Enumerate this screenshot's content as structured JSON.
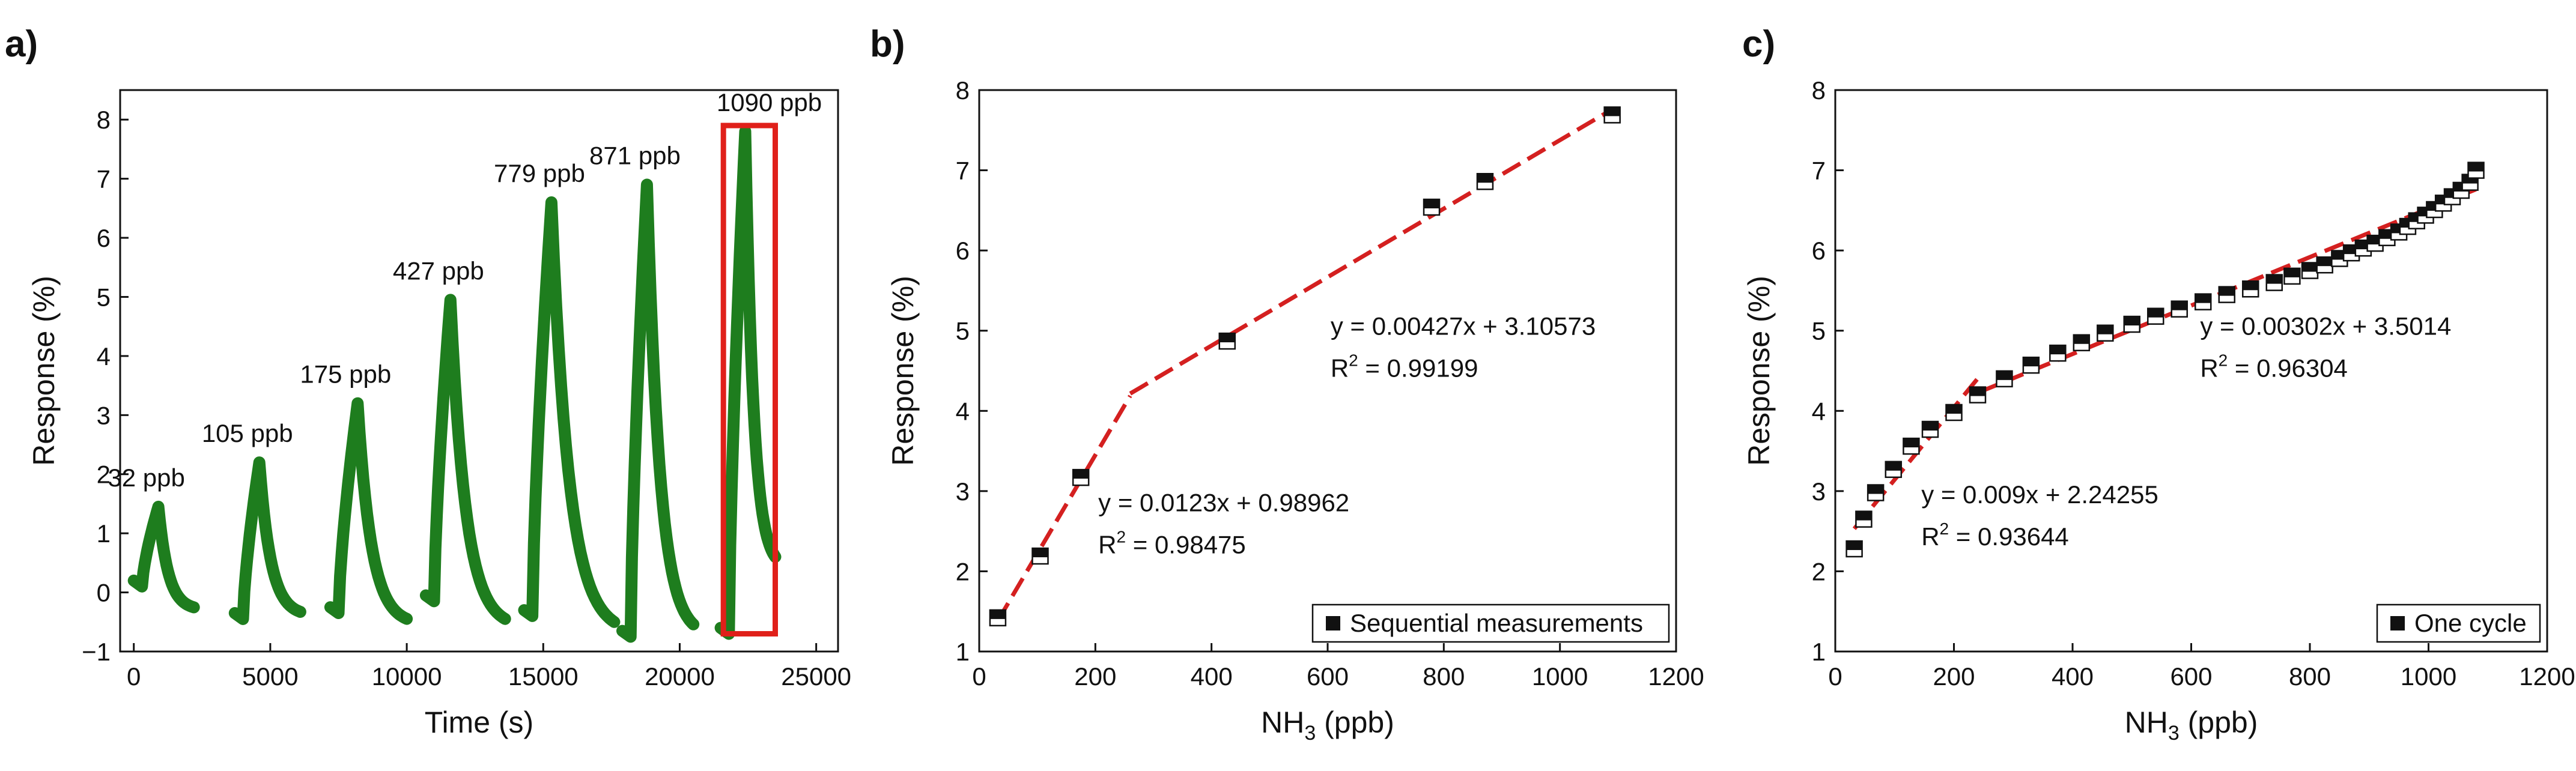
{
  "panels": [
    {
      "label": "a)"
    },
    {
      "label": "b)"
    },
    {
      "label": "c)"
    }
  ],
  "chart_data": [
    {
      "panel": "a)",
      "type": "line",
      "xlabel": "Time (s)",
      "ylabel": "Response (%)",
      "xlim": [
        -500,
        25800
      ],
      "ylim": [
        -1,
        8.5
      ],
      "xticks": [
        0,
        5000,
        10000,
        15000,
        20000,
        25000
      ],
      "yticks": [
        -1,
        0,
        1,
        2,
        3,
        4,
        5,
        6,
        7,
        8
      ],
      "color": "#1e7d1e",
      "highlight_color": "#e0201a",
      "highlight_box": {
        "x_range": [
          21600,
          23500
        ],
        "y_range": [
          -0.7,
          7.9
        ]
      },
      "pulses": [
        {
          "label": "32 ppb",
          "t_start": 300,
          "t_peak": 900,
          "t_end": 2200,
          "peak": 1.45,
          "base": 0.1,
          "tail": -0.3
        },
        {
          "label": "105 ppb",
          "t_start": 4000,
          "t_peak": 4600,
          "t_end": 6100,
          "peak": 2.2,
          "base": -0.45,
          "tail": -0.4
        },
        {
          "label": "175 ppb",
          "t_start": 7500,
          "t_peak": 8200,
          "t_end": 10000,
          "peak": 3.2,
          "base": -0.35,
          "tail": -0.55
        },
        {
          "label": "427 ppb",
          "t_start": 11000,
          "t_peak": 11600,
          "t_end": 13600,
          "peak": 4.95,
          "base": -0.15,
          "tail": -0.6
        },
        {
          "label": "779 ppb",
          "t_start": 14600,
          "t_peak": 15300,
          "t_end": 17600,
          "peak": 6.6,
          "base": -0.4,
          "tail": -0.7
        },
        {
          "label": "871 ppb",
          "t_start": 18200,
          "t_peak": 18800,
          "t_end": 20500,
          "peak": 6.9,
          "base": -0.75,
          "tail": -0.75
        },
        {
          "label": "1090 ppb",
          "t_start": 21800,
          "t_peak": 22400,
          "t_end": 23500,
          "peak": 7.8,
          "base": -0.7,
          "tail": 0.4
        }
      ]
    },
    {
      "panel": "b)",
      "type": "scatter",
      "xlabel": "NH3 (ppb)",
      "ylabel": "Response (%)",
      "xlim": [
        0,
        1200
      ],
      "ylim": [
        1,
        8
      ],
      "xticks": [
        0,
        200,
        400,
        600,
        800,
        1000,
        1200
      ],
      "yticks": [
        1,
        2,
        3,
        4,
        5,
        6,
        7,
        8
      ],
      "series": [
        {
          "name": "Sequential measurements",
          "x": [
            32,
            105,
            175,
            427,
            779,
            871,
            1090
          ],
          "y": [
            1.42,
            2.19,
            3.17,
            4.87,
            6.54,
            6.86,
            7.69
          ]
        }
      ],
      "fits": [
        {
          "eq": "y = 0.0123x + 0.98962",
          "r2_prefix": "R",
          "r2_sup": "2",
          "r2_value": " = 0.98475",
          "slope": 0.0123,
          "intercept": 0.98962,
          "x_range": [
            32,
            260
          ]
        },
        {
          "eq": "y = 0.00427x + 3.10573",
          "r2_prefix": "R",
          "r2_sup": "2",
          "r2_value": " = 0.99199",
          "slope": 0.00427,
          "intercept": 3.10573,
          "x_range": [
            260,
            1090
          ]
        }
      ],
      "fit_color": "#d42020",
      "legend_position": "bottom-right"
    },
    {
      "panel": "c)",
      "type": "scatter",
      "xlabel": "NH3 (ppb)",
      "ylabel": "Response (%)",
      "xlim": [
        0,
        1200
      ],
      "ylim": [
        1,
        8
      ],
      "xticks": [
        0,
        200,
        400,
        600,
        800,
        1000,
        1200
      ],
      "yticks": [
        1,
        2,
        3,
        4,
        5,
        6,
        7,
        8
      ],
      "series": [
        {
          "name": "One cycle",
          "x": [
            32,
            48,
            68,
            98,
            128,
            160,
            200,
            240,
            285,
            330,
            375,
            415,
            455,
            500,
            540,
            580,
            620,
            660,
            700,
            740,
            770,
            800,
            825,
            850,
            870,
            890,
            910,
            930,
            950,
            965,
            980,
            995,
            1010,
            1025,
            1040,
            1055,
            1070,
            1080
          ],
          "y": [
            2.28,
            2.65,
            2.98,
            3.27,
            3.56,
            3.77,
            3.98,
            4.2,
            4.4,
            4.57,
            4.72,
            4.85,
            4.97,
            5.08,
            5.18,
            5.27,
            5.36,
            5.45,
            5.52,
            5.6,
            5.68,
            5.75,
            5.82,
            5.9,
            5.97,
            6.03,
            6.09,
            6.16,
            6.23,
            6.3,
            6.37,
            6.44,
            6.51,
            6.59,
            6.67,
            6.75,
            6.85,
            7.0
          ]
        }
      ],
      "fits": [
        {
          "eq": "y = 0.009x + 2.24255",
          "r2_prefix": "R",
          "r2_sup": "2",
          "r2_value": " = 0.93644",
          "slope": 0.009,
          "intercept": 2.24255,
          "x_range": [
            32,
            240
          ]
        },
        {
          "eq": "y = 0.00302x + 3.5014",
          "r2_prefix": "R",
          "r2_sup": "2",
          "r2_value": " = 0.96304",
          "slope": 0.00302,
          "intercept": 3.5014,
          "x_range": [
            240,
            1080
          ]
        }
      ],
      "fit_color": "#d42020",
      "legend_position": "bottom-right"
    }
  ]
}
